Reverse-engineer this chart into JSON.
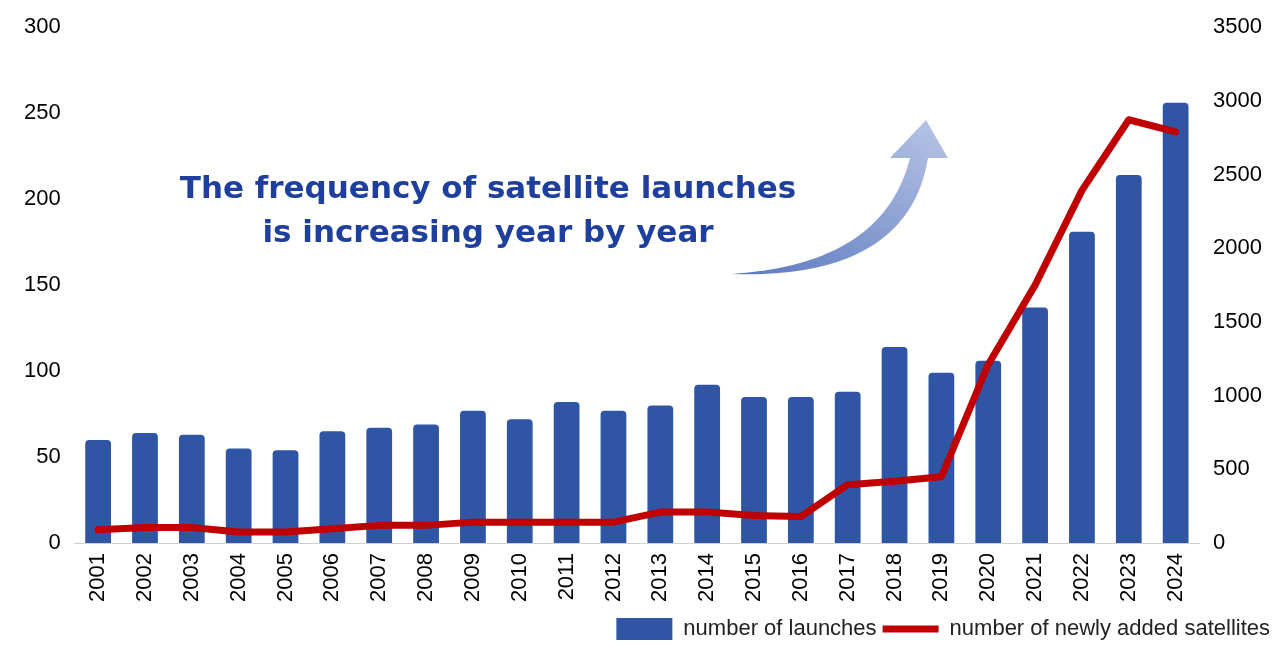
{
  "chart_data": {
    "type": "bar",
    "annotations": [
      "The frequency of satellite launches is increasing year by year"
    ],
    "categories": [
      "2001",
      "2002",
      "2003",
      "2004",
      "2005",
      "2006",
      "2007",
      "2008",
      "2009",
      "2010",
      "2011",
      "2012",
      "2013",
      "2014",
      "2015",
      "2016",
      "2017",
      "2018",
      "2019",
      "2020",
      "2021",
      "2022",
      "2023",
      "2024"
    ],
    "series": [
      {
        "name": "number of launches",
        "color": "#2f55a4",
        "values": [
          60,
          64,
          63,
          55,
          54,
          65,
          67,
          69,
          77,
          72,
          82,
          77,
          80,
          92,
          85,
          85,
          88,
          114,
          99,
          106,
          137,
          181,
          214,
          256
        ]
      },
      {
        "name": "number of newly added satellites",
        "type": "line",
        "axis": "y2",
        "color": "#c00000",
        "values": [
          90,
          105,
          105,
          75,
          75,
          97,
          120,
          120,
          142,
          142,
          142,
          142,
          210,
          210,
          187,
          180,
          396,
          420,
          450,
          1212,
          1750,
          2393,
          2872,
          2790
        ]
      }
    ],
    "ylim": [
      0,
      300
    ],
    "yticks": [
      0,
      50,
      100,
      150,
      200,
      250,
      300
    ],
    "y2lim": [
      0,
      3500
    ],
    "y2ticks": [
      0,
      500,
      1000,
      1500,
      2000,
      2500,
      3000,
      3500
    ],
    "grid": false,
    "legend": "bottom right",
    "marker": "none",
    "line_style": "solid"
  }
}
